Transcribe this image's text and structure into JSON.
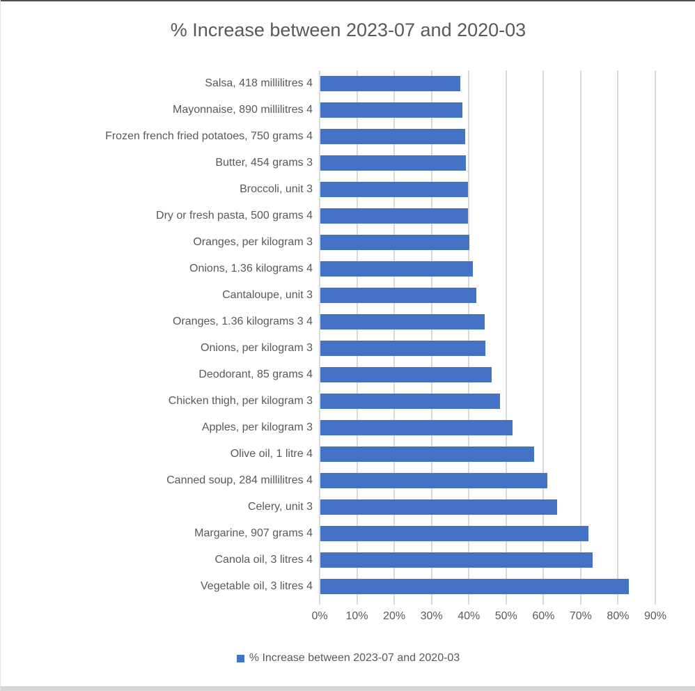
{
  "title": "% Increase between 2023-07 and 2020-03",
  "legend": {
    "label": "% Increase between 2023-07 and 2020-03",
    "swatch_color": "#4472C4"
  },
  "chart_data": {
    "type": "bar",
    "orientation": "horizontal",
    "title": "% Increase between 2023-07 and 2020-03",
    "categories": [
      "Salsa, 418 millilitres 4",
      "Mayonnaise, 890 millilitres  4",
      "Frozen french fried potatoes, 750 grams 4",
      "Butter, 454 grams 3",
      "Broccoli, unit 3",
      "Dry or fresh pasta, 500 grams 4",
      "Oranges, per kilogram 3",
      "Onions, 1.36 kilograms 4",
      "Cantaloupe, unit 3",
      "Oranges, 1.36 kilograms 3 4",
      "Onions, per kilogram 3",
      "Deodorant, 85 grams 4",
      "Chicken thigh, per kilogram 3",
      "Apples, per kilogram 3",
      "Olive oil, 1 litre 4",
      "Canned soup, 284 millilitres 4",
      "Celery, unit 3",
      "Margarine, 907 grams 4",
      "Canola oil, 3 litres 4",
      "Vegetable oil, 3 litres 4"
    ],
    "values": [
      37.5,
      38.0,
      38.8,
      39.0,
      39.5,
      39.6,
      40.0,
      40.8,
      41.8,
      44.0,
      44.2,
      46.0,
      48.2,
      51.6,
      57.4,
      60.8,
      63.4,
      71.8,
      73.1,
      82.7
    ],
    "series_name": "% Increase between 2023-07 and 2020-03",
    "x_ticks": [
      "0%",
      "10%",
      "20%",
      "30%",
      "40%",
      "50%",
      "60%",
      "70%",
      "80%",
      "90%"
    ],
    "xlim": [
      0,
      90
    ],
    "xlabel": "",
    "ylabel": "",
    "grid": true,
    "legend_position": "bottom",
    "bar_color": "#4472C4",
    "gridline_color": "#D9D9D9",
    "text_color": "#595959"
  }
}
